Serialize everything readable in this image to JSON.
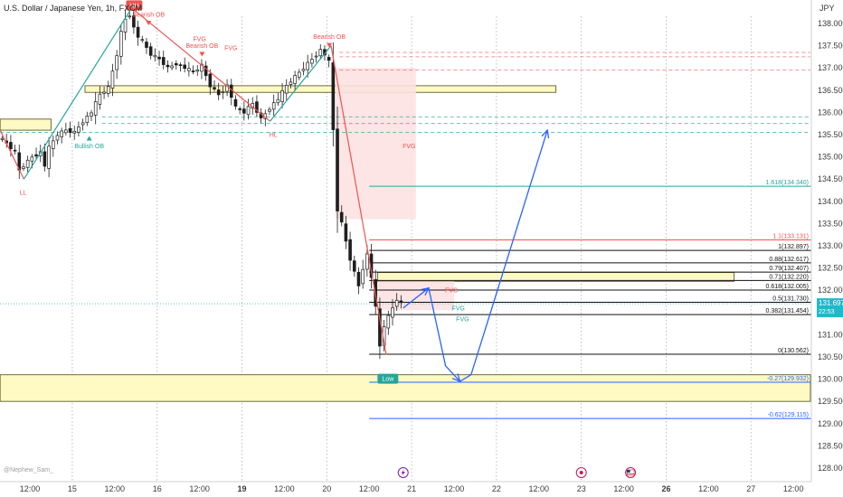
{
  "header": {
    "title": "U.S. Dollar / Japanese Yen, 1h, FXCM",
    "currency": "JPY"
  },
  "watermark": "@Nephew_Sam_",
  "colors": {
    "bull": "#26a69a",
    "bear": "#ef5350",
    "candle": "#1e1e1e",
    "zone_fill": "#fff9c4",
    "zone_stroke": "#6d6d3a",
    "red_box": "#fde2e2",
    "blue_path": "#2962ff",
    "price_tag": "#22b8c9"
  },
  "current_price": {
    "value": 131.697,
    "label": "131.697",
    "timer": "22:53"
  },
  "chart_data": {
    "type": "candlestick",
    "title": "U.S. Dollar / Japanese Yen, 1h, FXCM",
    "ylim": [
      127.85,
      138.5
    ],
    "xlim": [
      0,
      100
    ],
    "y_ticks": [
      128.0,
      128.5,
      129.0,
      129.5,
      130.0,
      130.5,
      131.0,
      131.5,
      132.0,
      132.5,
      133.0,
      133.5,
      134.0,
      134.5,
      135.0,
      135.5,
      136.0,
      136.5,
      137.0,
      137.5,
      138.0
    ],
    "y_tick_labels": [
      "128.000",
      "128.500",
      "129.000",
      "129.500",
      "130.000",
      "130.500",
      "131.000",
      "131.500",
      "132.000",
      "132.500",
      "133.000",
      "133.500",
      "134.000",
      "134.500",
      "135.000",
      "135.500",
      "136.000",
      "136.500",
      "137.000",
      "137.500",
      "138.000"
    ],
    "x_ticks": [
      {
        "t": 3.5,
        "label": "12:00",
        "bold": false
      },
      {
        "t": 8.5,
        "label": "15",
        "bold": false
      },
      {
        "t": 13.5,
        "label": "12:00",
        "bold": false
      },
      {
        "t": 18.5,
        "label": "16",
        "bold": false
      },
      {
        "t": 23.5,
        "label": "12:00",
        "bold": false
      },
      {
        "t": 28.5,
        "label": "19",
        "bold": true
      },
      {
        "t": 33.5,
        "label": "12:00",
        "bold": false
      },
      {
        "t": 38.5,
        "label": "20",
        "bold": false
      },
      {
        "t": 43.5,
        "label": "12:00",
        "bold": false
      },
      {
        "t": 48.5,
        "label": "21",
        "bold": false
      },
      {
        "t": 53.5,
        "label": "12:00",
        "bold": false
      },
      {
        "t": 58.5,
        "label": "22",
        "bold": false
      },
      {
        "t": 63.5,
        "label": "12:00",
        "bold": false
      },
      {
        "t": 68.5,
        "label": "23",
        "bold": false
      },
      {
        "t": 73.5,
        "label": "12:00",
        "bold": false
      },
      {
        "t": 78.5,
        "label": "26",
        "bold": true
      },
      {
        "t": 83.5,
        "label": "12:00",
        "bold": false
      },
      {
        "t": 88.5,
        "label": "27",
        "bold": false
      },
      {
        "t": 93.5,
        "label": "12:00",
        "bold": false
      }
    ],
    "price_path": [
      [
        0,
        135.45
      ],
      [
        1,
        135.3
      ],
      [
        2,
        135.1
      ],
      [
        2.5,
        134.7
      ],
      [
        3,
        134.8
      ],
      [
        4,
        135.0
      ],
      [
        5,
        135.1
      ],
      [
        5.5,
        134.8
      ],
      [
        6,
        135.2
      ],
      [
        7,
        135.5
      ],
      [
        8,
        135.6
      ],
      [
        9,
        135.55
      ],
      [
        10,
        135.8
      ],
      [
        11,
        136.0
      ],
      [
        12,
        136.4
      ],
      [
        13,
        136.55
      ],
      [
        14,
        137.3
      ],
      [
        14.5,
        137.8
      ],
      [
        15,
        138.1
      ],
      [
        15.5,
        138.2
      ],
      [
        16,
        137.9
      ],
      [
        16.5,
        137.7
      ],
      [
        17,
        137.6
      ],
      [
        18,
        137.3
      ],
      [
        19,
        137.2
      ],
      [
        20,
        137.0
      ],
      [
        21,
        137.1
      ],
      [
        22,
        137.0
      ],
      [
        23,
        136.9
      ],
      [
        24,
        137.05
      ],
      [
        25,
        136.6
      ],
      [
        26,
        136.4
      ],
      [
        27,
        136.6
      ],
      [
        28,
        136.1
      ],
      [
        29,
        136.0
      ],
      [
        30,
        136.2
      ],
      [
        31,
        135.85
      ],
      [
        32,
        136.1
      ],
      [
        33,
        136.3
      ],
      [
        34,
        136.6
      ],
      [
        35,
        136.8
      ],
      [
        36,
        137.0
      ],
      [
        37,
        137.2
      ],
      [
        38,
        137.4
      ],
      [
        38.5,
        137.3
      ],
      [
        39.1,
        137.1
      ],
      [
        39.4,
        136.0
      ],
      [
        39.7,
        134.8
      ],
      [
        40,
        133.8
      ],
      [
        40.5,
        133.5
      ],
      [
        41,
        133.1
      ],
      [
        41.5,
        132.7
      ],
      [
        42,
        132.4
      ],
      [
        42.5,
        132.1
      ],
      [
        43,
        132.5
      ],
      [
        43.5,
        132.8
      ],
      [
        44,
        132.3
      ],
      [
        44.5,
        131.6
      ],
      [
        44.8,
        131.0
      ],
      [
        45.1,
        130.6
      ],
      [
        45.5,
        131.2
      ],
      [
        46,
        131.4
      ],
      [
        46.5,
        131.6
      ],
      [
        47,
        131.8
      ],
      [
        47.5,
        131.697
      ]
    ],
    "zones": [
      {
        "t0": 0,
        "t1": 6,
        "y_low": 135.6,
        "y_high": 135.85
      },
      {
        "t0": 10,
        "t1": 65.5,
        "y_low": 136.45,
        "y_high": 136.6
      },
      {
        "t0": 44.5,
        "t1": 86.5,
        "y_low": 132.2,
        "y_high": 132.4
      },
      {
        "t0": 0,
        "t1": 95.5,
        "y_low": 129.5,
        "y_high": 130.1
      }
    ],
    "red_boxes": [
      {
        "t0": 39.5,
        "t1": 49,
        "y_low": 133.6,
        "y_high": 137.0
      },
      {
        "t0": 44.5,
        "t1": 53.5,
        "y_low": 131.55,
        "y_high": 132.2
      }
    ],
    "swing_lines": [
      {
        "color": "bear",
        "points": [
          [
            0,
            135.6
          ],
          [
            2.8,
            134.5
          ]
        ]
      },
      {
        "color": "bull",
        "points": [
          [
            2.8,
            134.5
          ],
          [
            15.5,
            138.35
          ]
        ]
      },
      {
        "color": "bear",
        "points": [
          [
            15.5,
            138.35
          ],
          [
            31.8,
            135.8
          ]
        ]
      },
      {
        "color": "bull",
        "points": [
          [
            31.8,
            135.8
          ],
          [
            39.0,
            137.5
          ]
        ]
      },
      {
        "color": "bear",
        "points": [
          [
            39.0,
            137.5
          ],
          [
            45.5,
            130.55
          ]
        ]
      }
    ],
    "dashed_lines": [
      {
        "t0": 40,
        "t1": 95.5,
        "y": 137.35,
        "color": "bear"
      },
      {
        "t0": 40,
        "t1": 95.5,
        "y": 137.25,
        "color": "bear"
      },
      {
        "t0": 40,
        "t1": 95.5,
        "y": 136.95,
        "color": "bear"
      },
      {
        "t0": 12,
        "t1": 95.5,
        "y": 135.9,
        "color": "bull"
      },
      {
        "t0": 12,
        "t1": 95.5,
        "y": 135.75,
        "color": "bull"
      },
      {
        "t0": 0,
        "t1": 95.5,
        "y": 135.55,
        "color": "bull"
      }
    ],
    "fib_levels": [
      {
        "label": "1.618(134.340)",
        "y": 134.34,
        "color": "#26a69a",
        "t0": 43.5
      },
      {
        "label": "1.1(133.131)",
        "y": 133.131,
        "color": "#ef5350",
        "t0": 43.5
      },
      {
        "label": "1(132.897)",
        "y": 132.897,
        "color": "#111111",
        "t0": 43.5
      },
      {
        "label": "0.88(132.617)",
        "y": 132.617,
        "color": "#111111",
        "t0": 43.5
      },
      {
        "label": "0.79(132.407)",
        "y": 132.407,
        "color": "#111111",
        "t0": 43.5
      },
      {
        "label": "0.71(132.220)",
        "y": 132.22,
        "color": "#111111",
        "t0": 43.5
      },
      {
        "label": "0.618(132.005)",
        "y": 132.005,
        "color": "#111111",
        "t0": 43.5
      },
      {
        "label": "0.5(131.730)",
        "y": 131.73,
        "color": "#111111",
        "t0": 43.5
      },
      {
        "label": "0.382(131.454)",
        "y": 131.454,
        "color": "#111111",
        "t0": 43.5
      },
      {
        "label": "0(130.562)",
        "y": 130.562,
        "color": "#111111",
        "t0": 43.5
      },
      {
        "label": "-0.27(129.932)",
        "y": 129.932,
        "color": "#2962ff",
        "t0": 43.5
      },
      {
        "label": "-0.62(129.115)",
        "y": 129.115,
        "color": "#2962ff",
        "t0": 43.5
      }
    ],
    "forecast_path": [
      [
        47.5,
        131.6
      ],
      [
        50.5,
        132.05
      ],
      [
        52.5,
        130.3
      ],
      [
        54.2,
        129.95
      ],
      [
        55.5,
        130.1
      ],
      [
        64.5,
        135.6
      ]
    ],
    "annotations": [
      {
        "text": "LL",
        "t": 2.7,
        "y": 134.15,
        "color": "bear"
      },
      {
        "text": "Bullish OB",
        "t": 10.5,
        "y": 135.2,
        "color": "bull"
      },
      {
        "text": "Bearish OB",
        "t": 17.5,
        "y": 138.15,
        "color": "bear"
      },
      {
        "text": "Bearish OB",
        "t": 23.8,
        "y": 137.45,
        "color": "bear"
      },
      {
        "text": "FVG",
        "t": 23.5,
        "y": 137.6,
        "color": "bear"
      },
      {
        "text": "FVG",
        "t": 27.2,
        "y": 137.4,
        "color": "bear"
      },
      {
        "text": "HL",
        "t": 32.2,
        "y": 135.45,
        "color": "bear"
      },
      {
        "text": "Bearish OB",
        "t": 38.8,
        "y": 137.65,
        "color": "bear"
      },
      {
        "text": "FVG",
        "t": 48.2,
        "y": 135.2,
        "color": "bear"
      },
      {
        "text": "FVG",
        "t": 53.2,
        "y": 131.95,
        "color": "bear"
      },
      {
        "text": "FVG",
        "t": 54.0,
        "y": 131.55,
        "color": "bull"
      },
      {
        "text": "FVG",
        "t": 54.5,
        "y": 131.3,
        "color": "bull"
      }
    ],
    "tags": [
      {
        "text": "HH",
        "t": 15.8,
        "y": 138.5,
        "color": "bear"
      },
      {
        "text": "Low",
        "t": 45.7,
        "y": 130.1,
        "color": "bull"
      }
    ],
    "events": [
      {
        "t": 47.5,
        "icon": "lightning-icon",
        "color": "#7b1fa2"
      },
      {
        "t": 68.5,
        "icon": "dot-event-icon",
        "color": "#c2185b"
      },
      {
        "t": 74.3,
        "icon": "us-flag-icon",
        "color": "#c2185b"
      }
    ]
  }
}
